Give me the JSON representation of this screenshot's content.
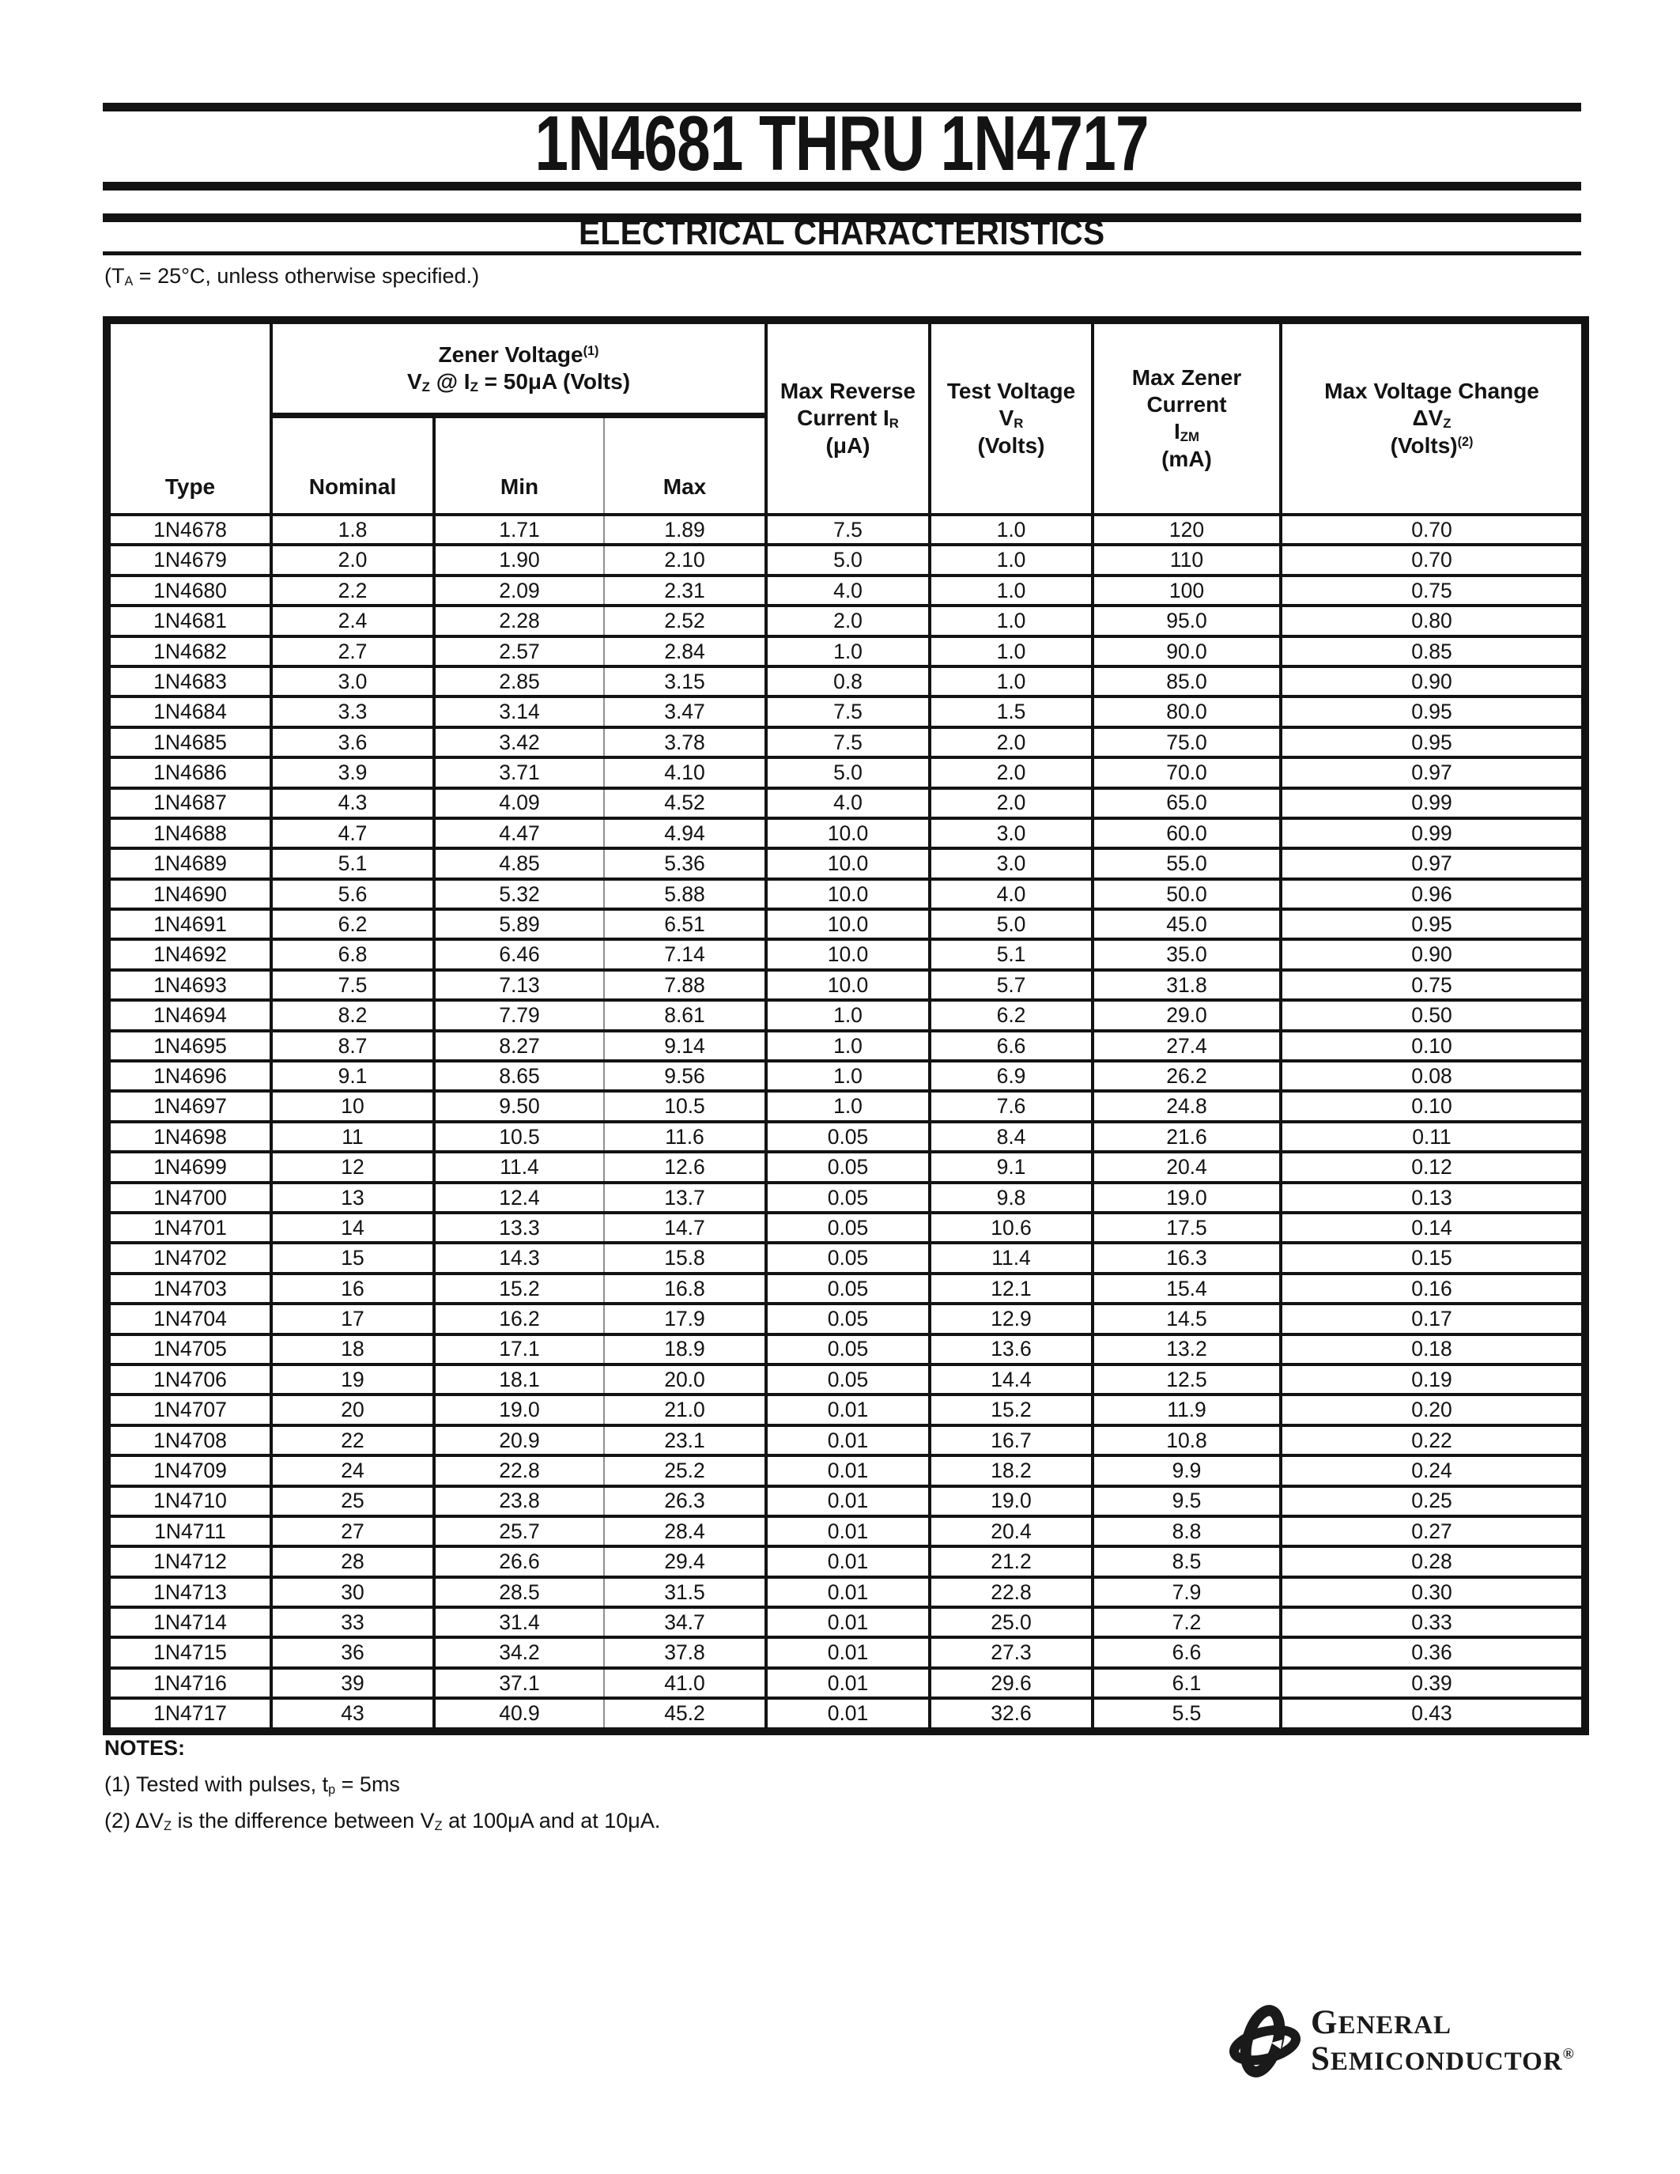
{
  "page": {
    "title": "1N4681 THRU 1N4717",
    "section_title": "ELECTRICAL CHARACTERISTICS",
    "condition_note": {
      "p1": "(T",
      "s1": "A",
      "p2": " = 25°C, unless otherwise specified.)"
    }
  },
  "table": {
    "header": {
      "type": "Type",
      "zener_group": {
        "title": "Zener Voltage",
        "title_sup": "(1)",
        "cond": {
          "p1": "V",
          "s1": "Z",
          "p2": " @ I",
          "s2": "Z",
          "p3": " = 50μA (Volts)"
        },
        "sub_nominal": "Nominal",
        "sub_min": "Min",
        "sub_max": "Max"
      },
      "max_reverse": {
        "l1": "Max Reverse",
        "l2": "Current I",
        "l2_sub": "R",
        "l3": "(μA)"
      },
      "test_voltage": {
        "l1": "Test Voltage",
        "l2": "V",
        "l2_sub": "R",
        "l3": "(Volts)"
      },
      "max_zener": {
        "l1": "Max Zener",
        "l2": "Current",
        "l3": "I",
        "l3_sub": "ZM",
        "l4": "(mA)"
      },
      "max_change": {
        "l1": "Max Voltage Change",
        "l2": "ΔV",
        "l2_sub": "Z",
        "l3": "(Volts)",
        "l3_sup": "(2)"
      }
    },
    "rows": [
      [
        "1N4678",
        "1.8",
        "1.71",
        "1.89",
        "7.5",
        "1.0",
        "120",
        "0.70"
      ],
      [
        "1N4679",
        "2.0",
        "1.90",
        "2.10",
        "5.0",
        "1.0",
        "110",
        "0.70"
      ],
      [
        "1N4680",
        "2.2",
        "2.09",
        "2.31",
        "4.0",
        "1.0",
        "100",
        "0.75"
      ],
      [
        "1N4681",
        "2.4",
        "2.28",
        "2.52",
        "2.0",
        "1.0",
        "95.0",
        "0.80"
      ],
      [
        "1N4682",
        "2.7",
        "2.57",
        "2.84",
        "1.0",
        "1.0",
        "90.0",
        "0.85"
      ],
      [
        "1N4683",
        "3.0",
        "2.85",
        "3.15",
        "0.8",
        "1.0",
        "85.0",
        "0.90"
      ],
      [
        "1N4684",
        "3.3",
        "3.14",
        "3.47",
        "7.5",
        "1.5",
        "80.0",
        "0.95"
      ],
      [
        "1N4685",
        "3.6",
        "3.42",
        "3.78",
        "7.5",
        "2.0",
        "75.0",
        "0.95"
      ],
      [
        "1N4686",
        "3.9",
        "3.71",
        "4.10",
        "5.0",
        "2.0",
        "70.0",
        "0.97"
      ],
      [
        "1N4687",
        "4.3",
        "4.09",
        "4.52",
        "4.0",
        "2.0",
        "65.0",
        "0.99"
      ],
      [
        "1N4688",
        "4.7",
        "4.47",
        "4.94",
        "10.0",
        "3.0",
        "60.0",
        "0.99"
      ],
      [
        "1N4689",
        "5.1",
        "4.85",
        "5.36",
        "10.0",
        "3.0",
        "55.0",
        "0.97"
      ],
      [
        "1N4690",
        "5.6",
        "5.32",
        "5.88",
        "10.0",
        "4.0",
        "50.0",
        "0.96"
      ],
      [
        "1N4691",
        "6.2",
        "5.89",
        "6.51",
        "10.0",
        "5.0",
        "45.0",
        "0.95"
      ],
      [
        "1N4692",
        "6.8",
        "6.46",
        "7.14",
        "10.0",
        "5.1",
        "35.0",
        "0.90"
      ],
      [
        "1N4693",
        "7.5",
        "7.13",
        "7.88",
        "10.0",
        "5.7",
        "31.8",
        "0.75"
      ],
      [
        "1N4694",
        "8.2",
        "7.79",
        "8.61",
        "1.0",
        "6.2",
        "29.0",
        "0.50"
      ],
      [
        "1N4695",
        "8.7",
        "8.27",
        "9.14",
        "1.0",
        "6.6",
        "27.4",
        "0.10"
      ],
      [
        "1N4696",
        "9.1",
        "8.65",
        "9.56",
        "1.0",
        "6.9",
        "26.2",
        "0.08"
      ],
      [
        "1N4697",
        "10",
        "9.50",
        "10.5",
        "1.0",
        "7.6",
        "24.8",
        "0.10"
      ],
      [
        "1N4698",
        "11",
        "10.5",
        "11.6",
        "0.05",
        "8.4",
        "21.6",
        "0.11"
      ],
      [
        "1N4699",
        "12",
        "11.4",
        "12.6",
        "0.05",
        "9.1",
        "20.4",
        "0.12"
      ],
      [
        "1N4700",
        "13",
        "12.4",
        "13.7",
        "0.05",
        "9.8",
        "19.0",
        "0.13"
      ],
      [
        "1N4701",
        "14",
        "13.3",
        "14.7",
        "0.05",
        "10.6",
        "17.5",
        "0.14"
      ],
      [
        "1N4702",
        "15",
        "14.3",
        "15.8",
        "0.05",
        "11.4",
        "16.3",
        "0.15"
      ],
      [
        "1N4703",
        "16",
        "15.2",
        "16.8",
        "0.05",
        "12.1",
        "15.4",
        "0.16"
      ],
      [
        "1N4704",
        "17",
        "16.2",
        "17.9",
        "0.05",
        "12.9",
        "14.5",
        "0.17"
      ],
      [
        "1N4705",
        "18",
        "17.1",
        "18.9",
        "0.05",
        "13.6",
        "13.2",
        "0.18"
      ],
      [
        "1N4706",
        "19",
        "18.1",
        "20.0",
        "0.05",
        "14.4",
        "12.5",
        "0.19"
      ],
      [
        "1N4707",
        "20",
        "19.0",
        "21.0",
        "0.01",
        "15.2",
        "11.9",
        "0.20"
      ],
      [
        "1N4708",
        "22",
        "20.9",
        "23.1",
        "0.01",
        "16.7",
        "10.8",
        "0.22"
      ],
      [
        "1N4709",
        "24",
        "22.8",
        "25.2",
        "0.01",
        "18.2",
        "9.9",
        "0.24"
      ],
      [
        "1N4710",
        "25",
        "23.8",
        "26.3",
        "0.01",
        "19.0",
        "9.5",
        "0.25"
      ],
      [
        "1N4711",
        "27",
        "25.7",
        "28.4",
        "0.01",
        "20.4",
        "8.8",
        "0.27"
      ],
      [
        "1N4712",
        "28",
        "26.6",
        "29.4",
        "0.01",
        "21.2",
        "8.5",
        "0.28"
      ],
      [
        "1N4713",
        "30",
        "28.5",
        "31.5",
        "0.01",
        "22.8",
        "7.9",
        "0.30"
      ],
      [
        "1N4714",
        "33",
        "31.4",
        "34.7",
        "0.01",
        "25.0",
        "7.2",
        "0.33"
      ],
      [
        "1N4715",
        "36",
        "34.2",
        "37.8",
        "0.01",
        "27.3",
        "6.6",
        "0.36"
      ],
      [
        "1N4716",
        "39",
        "37.1",
        "41.0",
        "0.01",
        "29.6",
        "6.1",
        "0.39"
      ],
      [
        "1N4717",
        "43",
        "40.9",
        "45.2",
        "0.01",
        "32.6",
        "5.5",
        "0.43"
      ]
    ]
  },
  "notes": {
    "heading": "NOTES:",
    "note1": {
      "p1": "(1) Tested with pulses, t",
      "s1": "p",
      "p2": " = 5ms"
    },
    "note2": {
      "p1": "(2) ΔV",
      "s1": "Z",
      "p2": " is the difference between V",
      "s2": "Z",
      "p3": " at 100μA and at 10μA."
    }
  },
  "logo": {
    "line1_initial": "G",
    "line1_rest": "ENERAL",
    "line2_initial": "S",
    "line2_rest": "EMICONDUCTOR",
    "registered": "®"
  }
}
